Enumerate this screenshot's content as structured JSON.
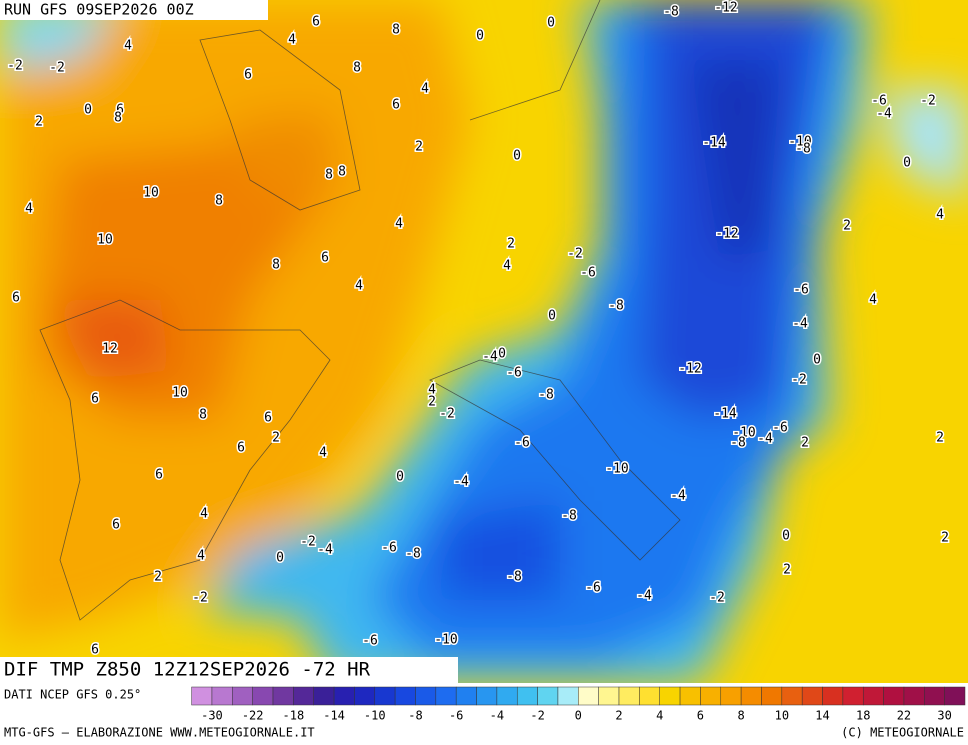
{
  "header": {
    "run": "RUN GFS 09SEP2026 00Z"
  },
  "map": {
    "title": "DIF TMP Z850 12Z12SEP2026 -72 HR",
    "contour_labels": [
      -2,
      -2,
      4,
      0,
      6,
      2,
      8,
      6,
      4,
      6,
      8,
      8,
      4,
      6,
      2,
      8,
      8,
      10,
      8,
      4,
      10,
      8,
      6,
      6,
      4,
      4,
      2,
      4,
      0,
      0,
      0,
      12,
      10,
      6,
      8,
      6,
      6,
      2,
      4,
      6,
      4,
      6,
      4,
      2,
      6,
      0,
      0,
      4,
      2,
      -2,
      -4,
      0,
      -6,
      -8,
      -6,
      -4,
      -2,
      -4,
      -6,
      -8,
      -2,
      -6,
      -10,
      -8,
      -8,
      -6,
      -4,
      -2,
      -10,
      -4,
      0,
      -2,
      -6,
      -8,
      -12,
      -12,
      -14,
      -14,
      -10,
      -8,
      -4,
      -6,
      2,
      -6,
      -4,
      -2,
      0,
      -8,
      -12,
      -10,
      -8,
      -6,
      -4,
      -2,
      0,
      4,
      2,
      4,
      2,
      0,
      2,
      2
    ]
  },
  "legend": {
    "source": "DATI NCEP GFS 0.25°",
    "ticks": [
      -30,
      -22,
      -18,
      -14,
      -10,
      -8,
      -6,
      -4,
      -2,
      0,
      2,
      4,
      6,
      8,
      10,
      14,
      18,
      22,
      30
    ]
  },
  "footer": {
    "left": "MTG-GFS – ELABORAZIONE WWW.METEOGIORNALE.IT",
    "right": "(C) METEOGIORNALE"
  }
}
